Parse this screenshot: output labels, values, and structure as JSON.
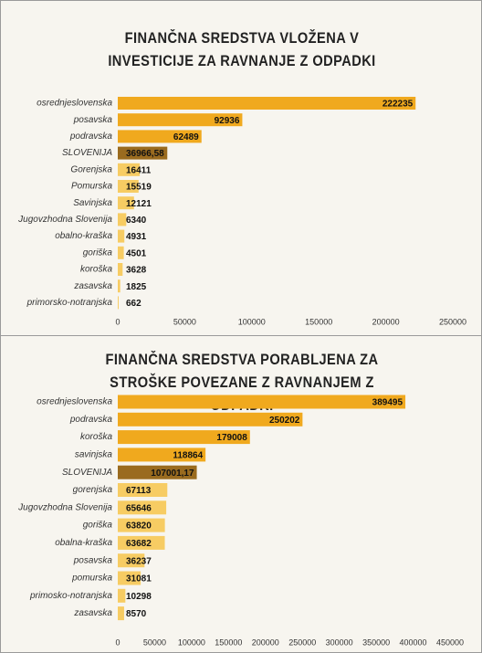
{
  "chart_data": [
    {
      "type": "bar",
      "orientation": "horizontal",
      "title": "FINANČNA SREDSTVA VLOŽENA V INVESTICIJE ZA RAVNANJE Z ODPADKI",
      "categories": [
        "osrednjeslovenska",
        "posavska",
        "podravska",
        "SLOVENIJA",
        "Gorenjska",
        "Pomurska",
        "Savinjska",
        "Jugovzhodna Slovenija",
        "obalno-kraška",
        "goriška",
        "koroška",
        "zasavska",
        "primorsko-notranjska"
      ],
      "values": [
        222235,
        92936,
        62489,
        36966.58,
        16411,
        15519,
        12121,
        6340,
        4931,
        4501,
        3628,
        1825,
        662
      ],
      "value_labels": [
        "222235",
        "92936",
        "62489",
        "36966,58",
        "16411",
        "15519",
        "12121",
        "6340",
        "4931",
        "4501",
        "3628",
        "1825",
        "662"
      ],
      "colors": [
        "#f0a91e",
        "#f0a91e",
        "#f0a91e",
        "#9a6b1f",
        "#f7cc63",
        "#f7cc63",
        "#f7cc63",
        "#f7cc63",
        "#f7cc63",
        "#f7cc63",
        "#f7cc63",
        "#f7cc63",
        "#f7cc63"
      ],
      "xlim": [
        0,
        250000
      ],
      "xticks": [
        0,
        50000,
        100000,
        150000,
        200000,
        250000
      ]
    },
    {
      "type": "bar",
      "orientation": "horizontal",
      "title": "FINANČNA SREDSTVA PORABLJENA ZA STROŠKE POVEZANE Z RAVNANJEM Z ODPADKI",
      "categories": [
        "osrednjeslovenska",
        "podravska",
        "koroška",
        "savinjska",
        "SLOVENIJA",
        "gorenjska",
        "Jugovzhodna Slovenija",
        "goriška",
        "obalna-kraška",
        "posavska",
        "pomurska",
        "primosko-notranjska",
        "zasavska"
      ],
      "values": [
        389495,
        250202,
        179008,
        118864,
        107001.17,
        67113,
        65646,
        63820,
        63682,
        36237,
        31081,
        10298,
        8570
      ],
      "value_labels": [
        "389495",
        "250202",
        "179008",
        "118864",
        "107001,17",
        "67113",
        "65646",
        "63820",
        "63682",
        "36237",
        "31081",
        "10298",
        "8570"
      ],
      "colors": [
        "#f0a91e",
        "#f0a91e",
        "#f0a91e",
        "#f0a91e",
        "#9a6b1f",
        "#f7cc63",
        "#f7cc63",
        "#f7cc63",
        "#f7cc63",
        "#f7cc63",
        "#f7cc63",
        "#f7cc63",
        "#f7cc63"
      ],
      "xlim": [
        0,
        450000
      ],
      "xticks": [
        0,
        50000,
        100000,
        150000,
        200000,
        250000,
        300000,
        350000,
        400000,
        450000
      ]
    }
  ]
}
